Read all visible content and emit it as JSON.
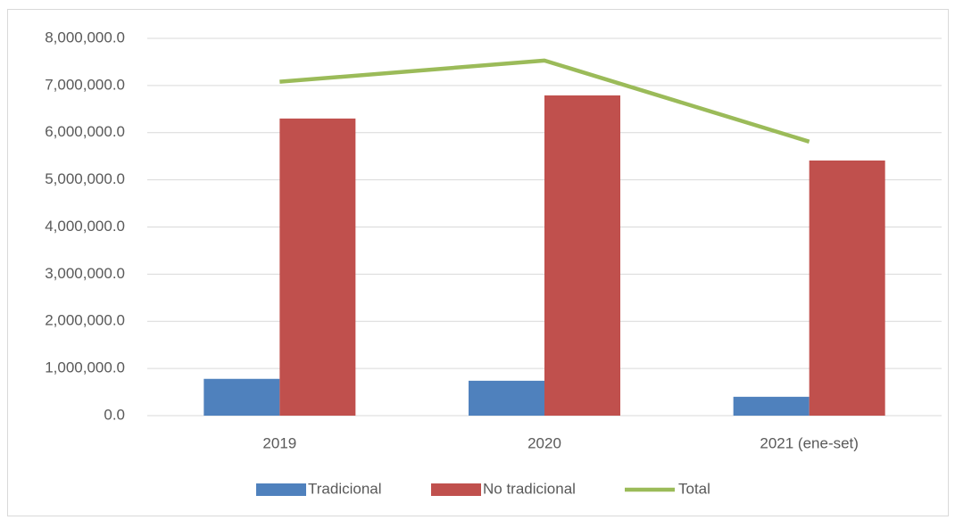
{
  "chart_data": {
    "type": "bar",
    "categories": [
      "2019",
      "2020",
      "2021 (ene-set)"
    ],
    "series": [
      {
        "name": "Tradicional",
        "type": "bar",
        "color": "#4f81bd",
        "values": [
          780000,
          740000,
          400000
        ]
      },
      {
        "name": "No tradicional",
        "type": "bar",
        "color": "#c0504d",
        "values": [
          6300000,
          6790000,
          5410000
        ]
      },
      {
        "name": "Total",
        "type": "line",
        "color": "#9bbb59",
        "values": [
          7080000,
          7530000,
          5810000
        ]
      }
    ],
    "ylim": [
      0,
      8000000
    ],
    "yticks": [
      {
        "value": 0,
        "label": "0.0"
      },
      {
        "value": 1000000,
        "label": "1,000,000.0"
      },
      {
        "value": 2000000,
        "label": "2,000,000.0"
      },
      {
        "value": 3000000,
        "label": "3,000,000.0"
      },
      {
        "value": 4000000,
        "label": "4,000,000.0"
      },
      {
        "value": 5000000,
        "label": "5,000,000.0"
      },
      {
        "value": 6000000,
        "label": "6,000,000.0"
      },
      {
        "value": 7000000,
        "label": "7,000,000.0"
      },
      {
        "value": 8000000,
        "label": "8,000,000.0"
      }
    ],
    "grid": true,
    "legend": "bottom"
  }
}
